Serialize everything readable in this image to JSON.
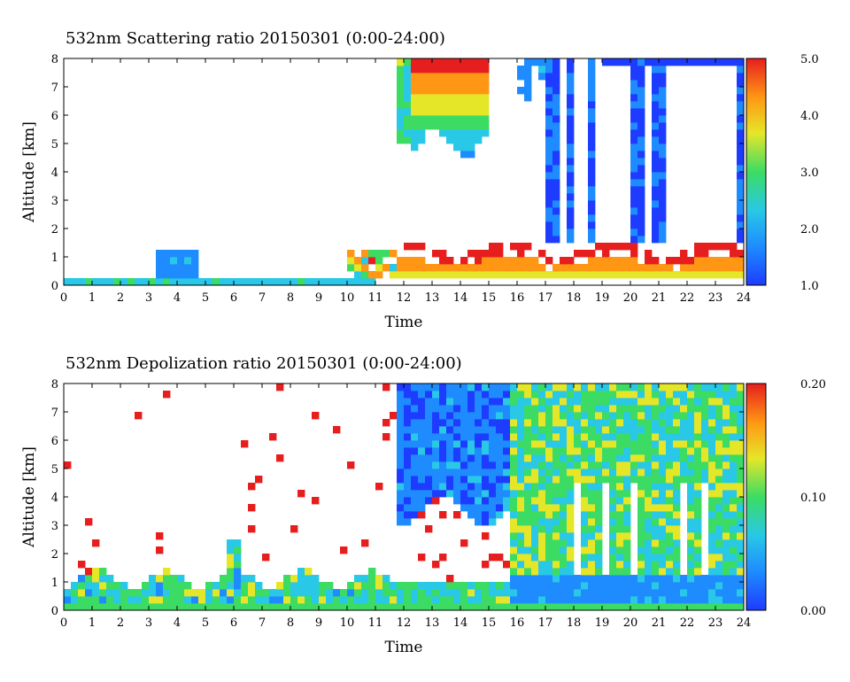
{
  "chart_data": [
    {
      "type": "heatmap",
      "title": "532nm Scattering ratio  20150301 (0:00-24:00)",
      "xlabel": "Time",
      "ylabel": "Altitude [km]",
      "xlim": [
        0,
        24
      ],
      "ylim": [
        0,
        8
      ],
      "x_ticks": [
        "0",
        "1",
        "2",
        "3",
        "4",
        "5",
        "6",
        "7",
        "8",
        "9",
        "10",
        "11",
        "12",
        "13",
        "14",
        "15",
        "16",
        "17",
        "18",
        "19",
        "20",
        "21",
        "22",
        "23",
        "24"
      ],
      "y_ticks": [
        "0",
        "1",
        "2",
        "3",
        "4",
        "5",
        "6",
        "7",
        "8"
      ],
      "colorbar": {
        "range": [
          1.0,
          5.0
        ],
        "ticks": [
          "1.0",
          "2.0",
          "3.0",
          "4.0",
          "5.0"
        ]
      }
    },
    {
      "type": "heatmap",
      "title": "532nm Depolization ratio  20150301 (0:00-24:00)",
      "xlabel": "Time",
      "ylabel": "Altitude [km]",
      "xlim": [
        0,
        24
      ],
      "ylim": [
        0,
        8
      ],
      "x_ticks": [
        "0",
        "1",
        "2",
        "3",
        "4",
        "5",
        "6",
        "7",
        "8",
        "9",
        "10",
        "11",
        "12",
        "13",
        "14",
        "15",
        "16",
        "17",
        "18",
        "19",
        "20",
        "21",
        "22",
        "23",
        "24"
      ],
      "y_ticks": [
        "0",
        "1",
        "2",
        "3",
        "4",
        "5",
        "6",
        "7",
        "8"
      ],
      "colorbar": {
        "range": [
          0.0,
          0.2
        ],
        "ticks": [
          "0.00",
          "0.10",
          "0.20"
        ]
      }
    }
  ],
  "colors": {
    "scale": [
      "#1e3cff",
      "#1e8cff",
      "#28c8e6",
      "#3cdc64",
      "#e6e628",
      "#ff9614",
      "#e61e1e"
    ]
  }
}
